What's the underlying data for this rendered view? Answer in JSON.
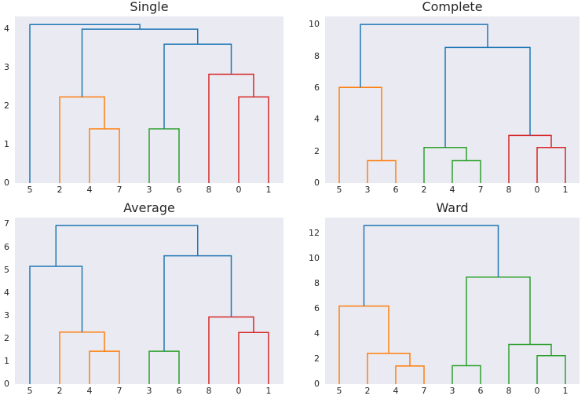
{
  "figure": {
    "background": "#ffffff",
    "axes_background": "#eaeaf2",
    "text_color": "#262626"
  },
  "colors": {
    "blue": "#1f77b4",
    "orange": "#ff7f0e",
    "green": "#2ca02c",
    "red": "#d62728"
  },
  "chart_data": [
    {
      "type": "dendrogram",
      "title": "Single",
      "xlabel": "",
      "ylabel": "",
      "grid": false,
      "leaves": [
        "5",
        "2",
        "4",
        "7",
        "3",
        "6",
        "8",
        "0",
        "1"
      ],
      "yticks": [
        "0",
        "1",
        "2",
        "3",
        "4"
      ],
      "ytick_values": [
        0,
        1,
        2,
        3,
        4
      ],
      "ylim": [
        0,
        4.33
      ],
      "links": [
        {
          "a": "L2",
          "b": "L3",
          "h": 1.41,
          "color": "orange"
        },
        {
          "a": "L1",
          "b": "K0",
          "h": 2.24,
          "color": "orange"
        },
        {
          "a": "L4",
          "b": "L5",
          "h": 1.41,
          "color": "green"
        },
        {
          "a": "L7",
          "b": "L8",
          "h": 2.24,
          "color": "red"
        },
        {
          "a": "L6",
          "b": "K3",
          "h": 2.83,
          "color": "red"
        },
        {
          "a": "K2",
          "b": "K4",
          "h": 3.61,
          "color": "blue"
        },
        {
          "a": "K1",
          "b": "K5",
          "h": 4.0,
          "color": "blue"
        },
        {
          "a": "L0",
          "b": "K6",
          "h": 4.12,
          "color": "blue"
        }
      ]
    },
    {
      "type": "dendrogram",
      "title": "Complete",
      "xlabel": "",
      "ylabel": "",
      "grid": false,
      "leaves": [
        "5",
        "3",
        "6",
        "2",
        "4",
        "7",
        "8",
        "0",
        "1"
      ],
      "yticks": [
        "0",
        "2",
        "4",
        "6",
        "8",
        "10"
      ],
      "ytick_values": [
        0,
        2,
        4,
        6,
        8,
        10
      ],
      "ylim": [
        0,
        10.5
      ],
      "links": [
        {
          "a": "L1",
          "b": "L2",
          "h": 1.41,
          "color": "orange"
        },
        {
          "a": "L0",
          "b": "K0",
          "h": 6.03,
          "color": "orange"
        },
        {
          "a": "L4",
          "b": "L5",
          "h": 1.41,
          "color": "green"
        },
        {
          "a": "L3",
          "b": "K2",
          "h": 2.24,
          "color": "green"
        },
        {
          "a": "L7",
          "b": "L8",
          "h": 2.24,
          "color": "red"
        },
        {
          "a": "L6",
          "b": "K4",
          "h": 3.0,
          "color": "red"
        },
        {
          "a": "K3",
          "b": "K5",
          "h": 8.55,
          "color": "blue"
        },
        {
          "a": "K1",
          "b": "K6",
          "h": 10.0,
          "color": "blue"
        }
      ]
    },
    {
      "type": "dendrogram",
      "title": "Average",
      "xlabel": "",
      "ylabel": "",
      "grid": false,
      "leaves": [
        "5",
        "2",
        "4",
        "7",
        "3",
        "6",
        "8",
        "0",
        "1"
      ],
      "yticks": [
        "0",
        "1",
        "2",
        "3",
        "4",
        "5",
        "6",
        "7"
      ],
      "ytick_values": [
        0,
        1,
        2,
        3,
        4,
        5,
        6,
        7
      ],
      "ylim": [
        0,
        7.29
      ],
      "links": [
        {
          "a": "L2",
          "b": "L3",
          "h": 1.44,
          "color": "orange"
        },
        {
          "a": "L1",
          "b": "K0",
          "h": 2.28,
          "color": "orange"
        },
        {
          "a": "L4",
          "b": "L5",
          "h": 1.44,
          "color": "green"
        },
        {
          "a": "L7",
          "b": "L8",
          "h": 2.26,
          "color": "red"
        },
        {
          "a": "L6",
          "b": "K3",
          "h": 2.94,
          "color": "red"
        },
        {
          "a": "L0",
          "b": "K1",
          "h": 5.16,
          "color": "blue"
        },
        {
          "a": "K2",
          "b": "K4",
          "h": 5.62,
          "color": "blue"
        },
        {
          "a": "K5",
          "b": "K6",
          "h": 6.94,
          "color": "blue"
        }
      ]
    },
    {
      "type": "dendrogram",
      "title": "Ward",
      "xlabel": "",
      "ylabel": "",
      "grid": false,
      "leaves": [
        "5",
        "2",
        "4",
        "7",
        "3",
        "6",
        "8",
        "0",
        "1"
      ],
      "yticks": [
        "0",
        "2",
        "4",
        "6",
        "8",
        "10",
        "12"
      ],
      "ytick_values": [
        0,
        2,
        4,
        6,
        8,
        10,
        12
      ],
      "ylim": [
        0,
        13.23
      ],
      "links": [
        {
          "a": "L2",
          "b": "L3",
          "h": 1.44,
          "color": "orange"
        },
        {
          "a": "L1",
          "b": "K0",
          "h": 2.45,
          "color": "orange"
        },
        {
          "a": "L0",
          "b": "K1",
          "h": 6.2,
          "color": "orange"
        },
        {
          "a": "L4",
          "b": "L5",
          "h": 1.47,
          "color": "green"
        },
        {
          "a": "L7",
          "b": "L8",
          "h": 2.26,
          "color": "green"
        },
        {
          "a": "L6",
          "b": "K4",
          "h": 3.15,
          "color": "green"
        },
        {
          "a": "K3",
          "b": "K5",
          "h": 8.5,
          "color": "green"
        },
        {
          "a": "K2",
          "b": "K6",
          "h": 12.6,
          "color": "blue"
        }
      ]
    }
  ]
}
